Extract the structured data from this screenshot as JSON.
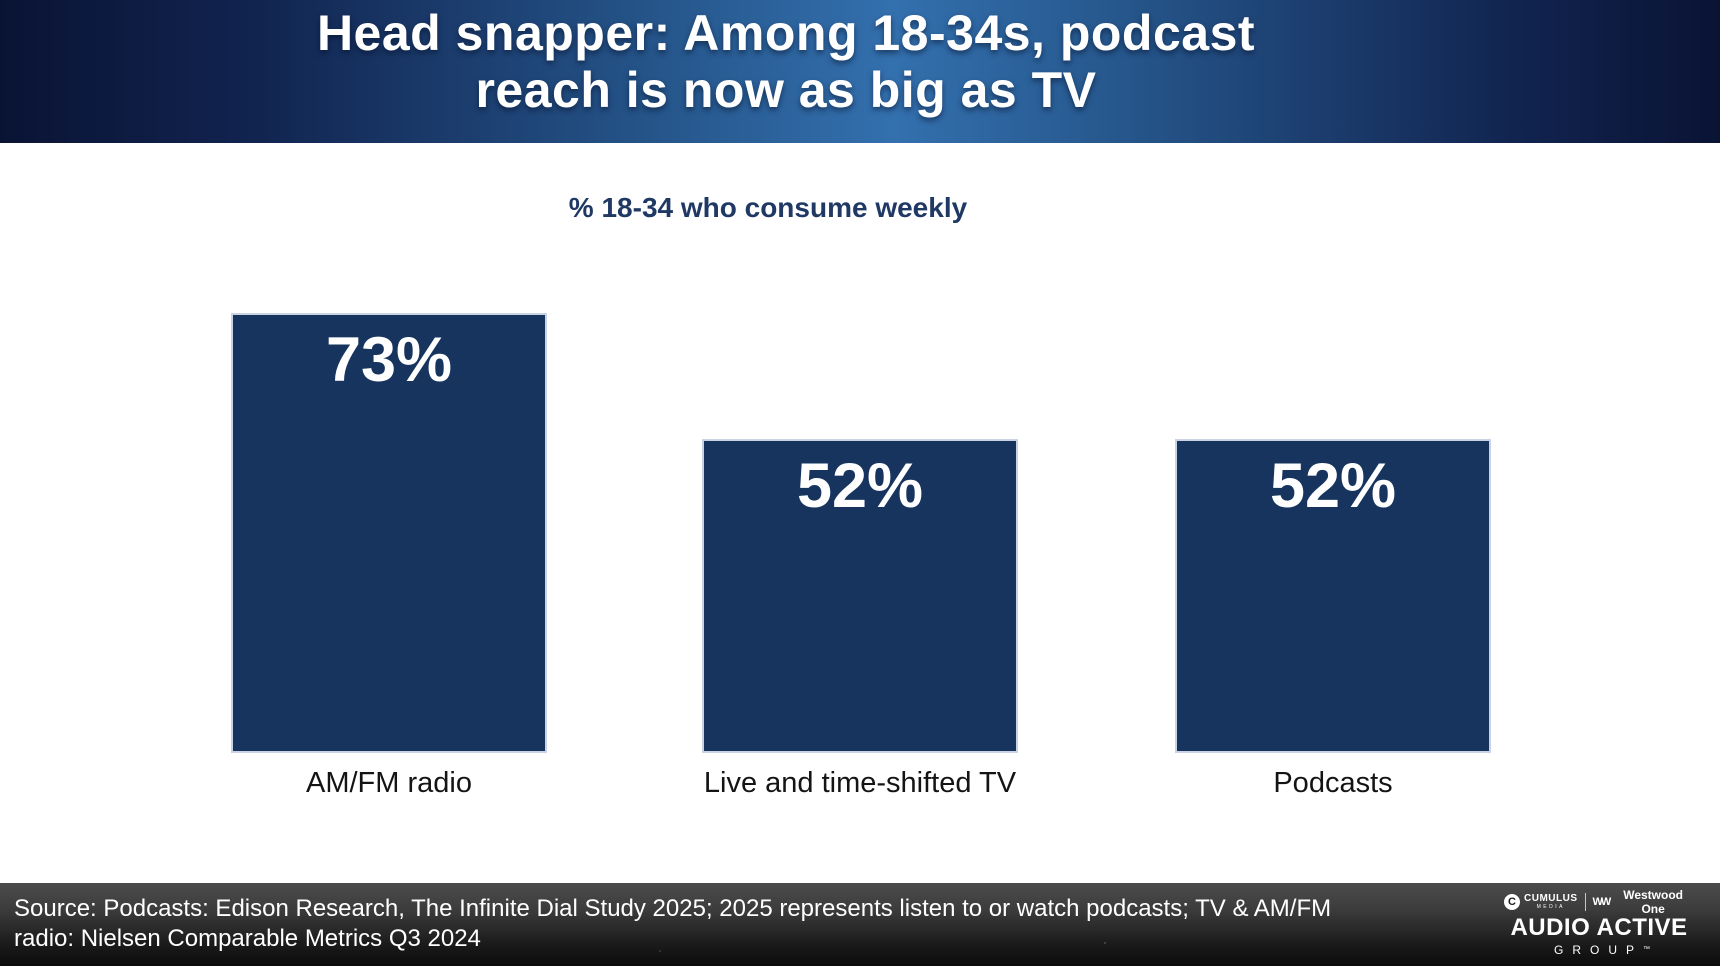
{
  "slide": {
    "title_line1": "Head snapper: Among 18-34s, podcast",
    "title_line2": "reach is now as big as TV",
    "subtitle": "% 18-34 who consume weekly"
  },
  "chart_data": {
    "type": "bar",
    "title": "% 18-34 who consume weekly",
    "categories": [
      "AM/FM radio",
      "Live and time-shifted TV",
      "Podcasts"
    ],
    "values": [
      73,
      52,
      52
    ],
    "value_labels": [
      "73%",
      "52%",
      "52%"
    ],
    "unit": "%",
    "ylim": [
      0,
      100
    ],
    "grid": false,
    "legend": false,
    "xlabel": "",
    "ylabel": "",
    "bar_color": "#16345e",
    "bar_border_color": "#c9d3e3",
    "value_label_color": "#ffffff",
    "category_label_color": "#141414"
  },
  "footer": {
    "source_line1": "Source: Podcasts: Edison Research, The Infinite Dial Study 2025; 2025 represents listen to or watch podcasts; TV & AM/FM",
    "source_line2": "radio: Nielsen Comparable Metrics Q3 2024",
    "logo": {
      "cumulus_initial": "C",
      "cumulus_text": "CUMULUS",
      "cumulus_sub": "MEDIA",
      "ww_mark": "WW",
      "westwood_text": "Westwood One",
      "audio_active": "AUDIO ACTIVE",
      "group": "GROUP",
      "trademark": "™"
    }
  },
  "colors": {
    "header_gradient_left": "#0a1334",
    "header_gradient_center": "#3370ae",
    "header_gradient_right": "#0a1334",
    "subtitle_color": "#1f3864",
    "footer_top": "#4c4c4c",
    "footer_bottom": "#0b0b0b"
  }
}
